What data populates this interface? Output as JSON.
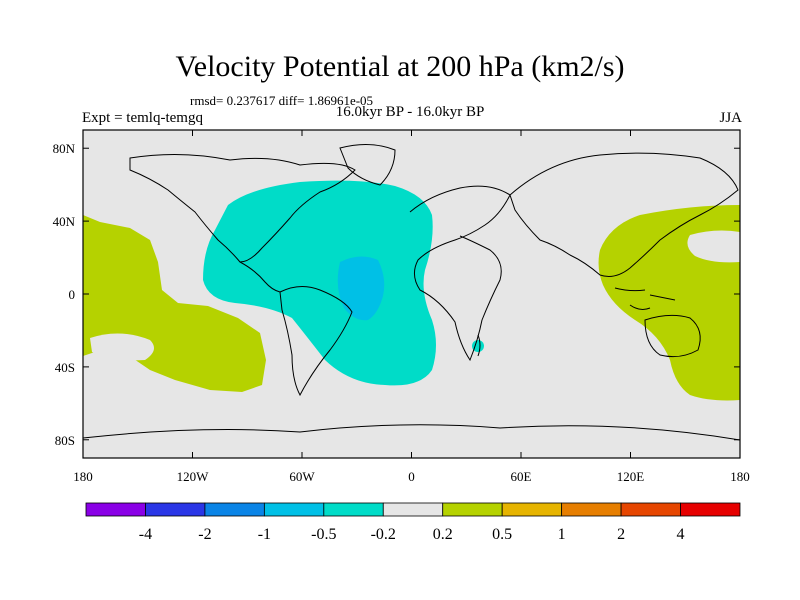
{
  "title": "Velocity Potential at 200 hPa (km2/s)",
  "stats": "rmsd= 0.237617 diff= 1.86961e-05",
  "experiment": "Expt = temlq-temgq",
  "period": "16.0kyr BP - 16.0kyr BP",
  "season": "JJA",
  "map": {
    "x_ticks": [
      "180",
      "120W",
      "60W",
      "0",
      "60E",
      "120E",
      "180"
    ],
    "y_ticks": [
      "80N",
      "40N",
      "0",
      "40S",
      "80S"
    ],
    "colors": {
      "background": "#e6e6e6",
      "positive_02_05": "#b5d200",
      "negative_05_02": "#00dcc8",
      "negative_1_05": "#00c0e6"
    }
  },
  "colorbar": {
    "colors": [
      "#8a00e6",
      "#2a36e6",
      "#0a84e6",
      "#00c0e6",
      "#00dcc8",
      "#e6e6e6",
      "#b5d200",
      "#e6b400",
      "#e67e00",
      "#e64600",
      "#e60000"
    ],
    "labels": [
      "-4",
      "-2",
      "-1",
      "-0.5",
      "-0.2",
      "0.2",
      "0.5",
      "1",
      "2",
      "4"
    ]
  }
}
